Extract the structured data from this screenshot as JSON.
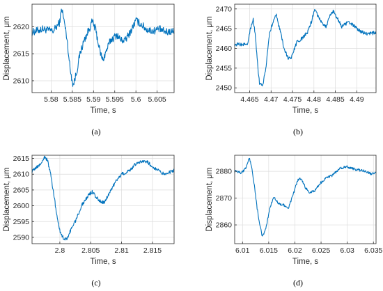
{
  "chart_data": [
    {
      "type": "line",
      "caption": "(a)",
      "xlabel": "Time, s",
      "ylabel": "Displacement, μm",
      "xlim": [
        5.5755,
        5.609
      ],
      "ylim": [
        2607.8,
        2624.2
      ],
      "xticks": [
        5.58,
        5.585,
        5.59,
        5.595,
        5.6,
        5.605
      ],
      "xticklabels": [
        "5.58",
        "5.585",
        "5.59",
        "5.595",
        "5.6",
        "5.605"
      ],
      "yticks": [
        2610,
        2615,
        2620
      ],
      "yticklabels": [
        "2610",
        "2615",
        "2620"
      ],
      "grid": true,
      "color": "#0072BD",
      "keypoints": [
        [
          5.5755,
          2619.0
        ],
        [
          5.578,
          2619.6
        ],
        [
          5.5805,
          2619.2
        ],
        [
          5.582,
          2620.8
        ],
        [
          5.5825,
          2623.5
        ],
        [
          5.5832,
          2620.5
        ],
        [
          5.5838,
          2617.5
        ],
        [
          5.5845,
          2612.0
        ],
        [
          5.5852,
          2609.2
        ],
        [
          5.586,
          2611.5
        ],
        [
          5.5868,
          2615.0
        ],
        [
          5.5878,
          2617.5
        ],
        [
          5.589,
          2619.6
        ],
        [
          5.5897,
          2621.0
        ],
        [
          5.5905,
          2619.5
        ],
        [
          5.5915,
          2615.5
        ],
        [
          5.5922,
          2613.8
        ],
        [
          5.593,
          2615.5
        ],
        [
          5.594,
          2617.5
        ],
        [
          5.5955,
          2618.5
        ],
        [
          5.5965,
          2617.5
        ],
        [
          5.5975,
          2617.5
        ],
        [
          5.599,
          2619.5
        ],
        [
          5.6,
          2621.2
        ],
        [
          5.6012,
          2620.5
        ],
        [
          5.6025,
          2619.5
        ],
        [
          5.604,
          2619.2
        ],
        [
          5.6055,
          2619.6
        ],
        [
          5.607,
          2619.0
        ],
        [
          5.609,
          2619.2
        ]
      ],
      "noise": 0.7
    },
    {
      "type": "line",
      "caption": "(b)",
      "xlabel": "Time, s",
      "ylabel": "Displacement, μm",
      "xlim": [
        4.4615,
        4.4945
      ],
      "ylim": [
        2448.8,
        2471.2
      ],
      "xticks": [
        4.465,
        4.47,
        4.475,
        4.48,
        4.485,
        4.49
      ],
      "xticklabels": [
        "4.465",
        "4.47",
        "4.475",
        "4.48",
        "4.485",
        "4.49"
      ],
      "yticks": [
        2450,
        2455,
        2460,
        2465,
        2470
      ],
      "yticklabels": [
        "2450",
        "2455",
        "2460",
        "2465",
        "2470"
      ],
      "grid": true,
      "color": "#0072BD",
      "keypoints": [
        [
          4.4615,
          2461.0
        ],
        [
          4.4635,
          2461.0
        ],
        [
          4.4645,
          2461.3
        ],
        [
          4.4652,
          2465.0
        ],
        [
          4.4658,
          2467.5
        ],
        [
          4.4663,
          2463.5
        ],
        [
          4.4668,
          2456.5
        ],
        [
          4.4673,
          2451.0
        ],
        [
          4.468,
          2450.5
        ],
        [
          4.4688,
          2455.0
        ],
        [
          4.4695,
          2463.0
        ],
        [
          4.4705,
          2467.0
        ],
        [
          4.4712,
          2468.5
        ],
        [
          4.472,
          2465.0
        ],
        [
          4.473,
          2460.0
        ],
        [
          4.474,
          2457.5
        ],
        [
          4.4748,
          2457.8
        ],
        [
          4.476,
          2461.5
        ],
        [
          4.4772,
          2462.5
        ],
        [
          4.4785,
          2464.0
        ],
        [
          4.4795,
          2467.0
        ],
        [
          4.4802,
          2470.3
        ],
        [
          4.481,
          2468.0
        ],
        [
          4.482,
          2466.5
        ],
        [
          4.4828,
          2465.5
        ],
        [
          4.4838,
          2468.3
        ],
        [
          4.4845,
          2469.5
        ],
        [
          4.4855,
          2467.5
        ],
        [
          4.4865,
          2465.5
        ],
        [
          4.4875,
          2466.3
        ],
        [
          4.4885,
          2466.5
        ],
        [
          4.4895,
          2465.5
        ],
        [
          4.4905,
          2464.5
        ],
        [
          4.4925,
          2463.6
        ],
        [
          4.4945,
          2464.0
        ]
      ],
      "noise": 0.45
    },
    {
      "type": "line",
      "caption": "(c)",
      "xlabel": "Time, s",
      "ylabel": "Displacement, μm",
      "xlim": [
        2.7955,
        2.8185
      ],
      "ylim": [
        2588.0,
        2616.0
      ],
      "xticks": [
        2.8,
        2.805,
        2.81,
        2.815
      ],
      "xticklabels": [
        "2.8",
        "2.805",
        "2.81",
        "2.815"
      ],
      "yticks": [
        2590,
        2595,
        2600,
        2605,
        2610,
        2615
      ],
      "yticklabels": [
        "2590",
        "2595",
        "2600",
        "2605",
        "2610",
        "2615"
      ],
      "grid": true,
      "color": "#0072BD",
      "keypoints": [
        [
          2.7955,
          2611.0
        ],
        [
          2.7962,
          2612.0
        ],
        [
          2.797,
          2613.5
        ],
        [
          2.7975,
          2615.3
        ],
        [
          2.798,
          2614.5
        ],
        [
          2.7985,
          2610.0
        ],
        [
          2.799,
          2604.0
        ],
        [
          2.7995,
          2597.0
        ],
        [
          2.8,
          2592.0
        ],
        [
          2.8005,
          2590.0
        ],
        [
          2.8011,
          2589.3
        ],
        [
          2.8018,
          2592.5
        ],
        [
          2.8025,
          2595.0
        ],
        [
          2.8035,
          2600.0
        ],
        [
          2.8045,
          2603.0
        ],
        [
          2.8052,
          2604.5
        ],
        [
          2.8058,
          2603.0
        ],
        [
          2.8065,
          2601.5
        ],
        [
          2.8072,
          2601.0
        ],
        [
          2.808,
          2604.0
        ],
        [
          2.809,
          2607.5
        ],
        [
          2.81,
          2610.0
        ],
        [
          2.8112,
          2611.0
        ],
        [
          2.8122,
          2613.0
        ],
        [
          2.8132,
          2614.2
        ],
        [
          2.8142,
          2613.8
        ],
        [
          2.815,
          2612.5
        ],
        [
          2.816,
          2611.0
        ],
        [
          2.817,
          2610.0
        ],
        [
          2.8185,
          2611.2
        ]
      ],
      "noise": 0.55
    },
    {
      "type": "line",
      "caption": "(d)",
      "xlabel": "Time, s",
      "ylabel": "Displacement, μm",
      "xlim": [
        6.0085,
        6.0355
      ],
      "ylim": [
        2853.0,
        2886.0
      ],
      "xticks": [
        6.01,
        6.015,
        6.02,
        6.025,
        6.03,
        6.035
      ],
      "xticklabels": [
        "6.01",
        "6.015",
        "6.02",
        "6.025",
        "6.03",
        "6.035"
      ],
      "yticks": [
        2860,
        2870,
        2880
      ],
      "yticklabels": [
        "2860",
        "2870",
        "2880"
      ],
      "grid": true,
      "color": "#0072BD",
      "keypoints": [
        [
          6.0085,
          2880.0
        ],
        [
          6.0098,
          2879.5
        ],
        [
          6.0106,
          2881.0
        ],
        [
          6.0113,
          2885.0
        ],
        [
          6.0118,
          2881.0
        ],
        [
          6.0123,
          2874.0
        ],
        [
          6.0128,
          2866.0
        ],
        [
          6.0133,
          2860.0
        ],
        [
          6.0138,
          2855.5
        ],
        [
          6.0145,
          2859.0
        ],
        [
          6.0152,
          2866.0
        ],
        [
          6.016,
          2870.5
        ],
        [
          6.0168,
          2868.0
        ],
        [
          6.0178,
          2867.5
        ],
        [
          6.0188,
          2866.5
        ],
        [
          6.0196,
          2871.0
        ],
        [
          6.0205,
          2876.5
        ],
        [
          6.0212,
          2877.5
        ],
        [
          6.022,
          2874.0
        ],
        [
          6.0228,
          2872.0
        ],
        [
          6.0238,
          2872.8
        ],
        [
          6.0248,
          2875.5
        ],
        [
          6.026,
          2877.5
        ],
        [
          6.0272,
          2878.5
        ],
        [
          6.0285,
          2881.0
        ],
        [
          6.0298,
          2881.8
        ],
        [
          6.031,
          2881.0
        ],
        [
          6.0322,
          2880.5
        ],
        [
          6.0335,
          2880.0
        ],
        [
          6.0345,
          2879.0
        ],
        [
          6.0355,
          2879.5
        ]
      ],
      "noise": 0.45
    }
  ]
}
